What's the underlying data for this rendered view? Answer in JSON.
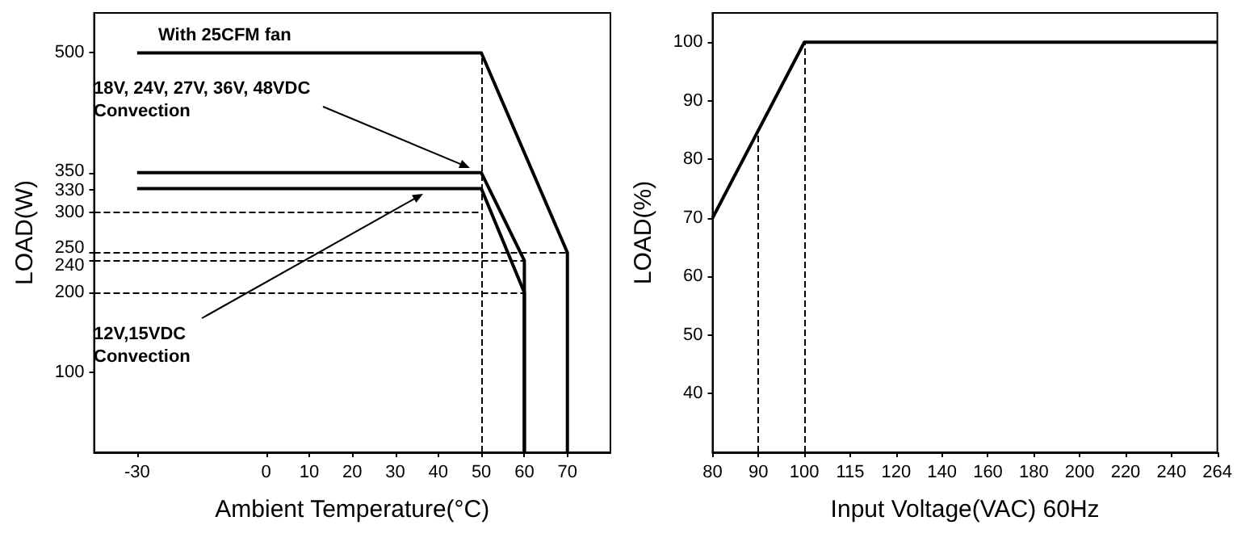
{
  "chart_data": [
    {
      "type": "line",
      "xlabel": "Ambient Temperature(°C)",
      "ylabel": "LOAD(W)",
      "xlim": [
        -40,
        80
      ],
      "xticks": [
        -30,
        0,
        10,
        20,
        30,
        40,
        50,
        60,
        70
      ],
      "ylim": [
        0,
        550
      ],
      "yticks": [
        100,
        200,
        240,
        250,
        300,
        330,
        350,
        500
      ],
      "marker": "none",
      "series": [
        {
          "color": "#000000",
          "x": [
            -30,
            50,
            70,
            70
          ],
          "values": [
            500,
            500,
            250,
            0
          ]
        },
        {
          "color": "#000000",
          "x": [
            -30,
            50,
            60,
            60
          ],
          "values": [
            350,
            350,
            240,
            0
          ]
        },
        {
          "color": "#000000",
          "x": [
            -30,
            50,
            60,
            60
          ],
          "values": [
            330,
            330,
            200,
            0
          ]
        }
      ],
      "ref_lines": [
        {
          "axis": "x",
          "value": 50,
          "line_style": "dashed",
          "color": "#000000"
        },
        {
          "axis": "y",
          "value": 300,
          "line_style": "dashed",
          "color": "#000000"
        },
        {
          "axis": "y",
          "value": 250,
          "line_style": "dashed",
          "color": "#000000"
        },
        {
          "axis": "y",
          "value": 240,
          "line_style": "dashed",
          "color": "#000000"
        },
        {
          "axis": "y",
          "value": 200,
          "line_style": "dashed",
          "color": "#000000"
        }
      ],
      "annotations": [
        "With 25CFM fan",
        "18V, 24V, 27V, 36V, 48VDC Convection",
        "12V,15VDC Convection"
      ]
    },
    {
      "type": "line",
      "xlabel": "Input Voltage(VAC) 60Hz",
      "ylabel": "LOAD(%)",
      "categories": [
        "80",
        "90",
        "100",
        "115",
        "120",
        "140",
        "160",
        "180",
        "200",
        "220",
        "240",
        "264"
      ],
      "ylim": [
        30,
        105
      ],
      "yticks": [
        40,
        50,
        60,
        70,
        80,
        90,
        100
      ],
      "marker": "none",
      "series": [
        {
          "color": "#000000",
          "values": [
            70,
            85,
            100,
            100,
            100,
            100,
            100,
            100,
            100,
            100,
            100,
            100
          ]
        }
      ],
      "ref_lines": [
        {
          "axis": "x",
          "value": "90",
          "line_style": "dashed",
          "color": "#000000"
        },
        {
          "axis": "x",
          "value": "100",
          "line_style": "dashed",
          "color": "#000000"
        }
      ]
    }
  ]
}
